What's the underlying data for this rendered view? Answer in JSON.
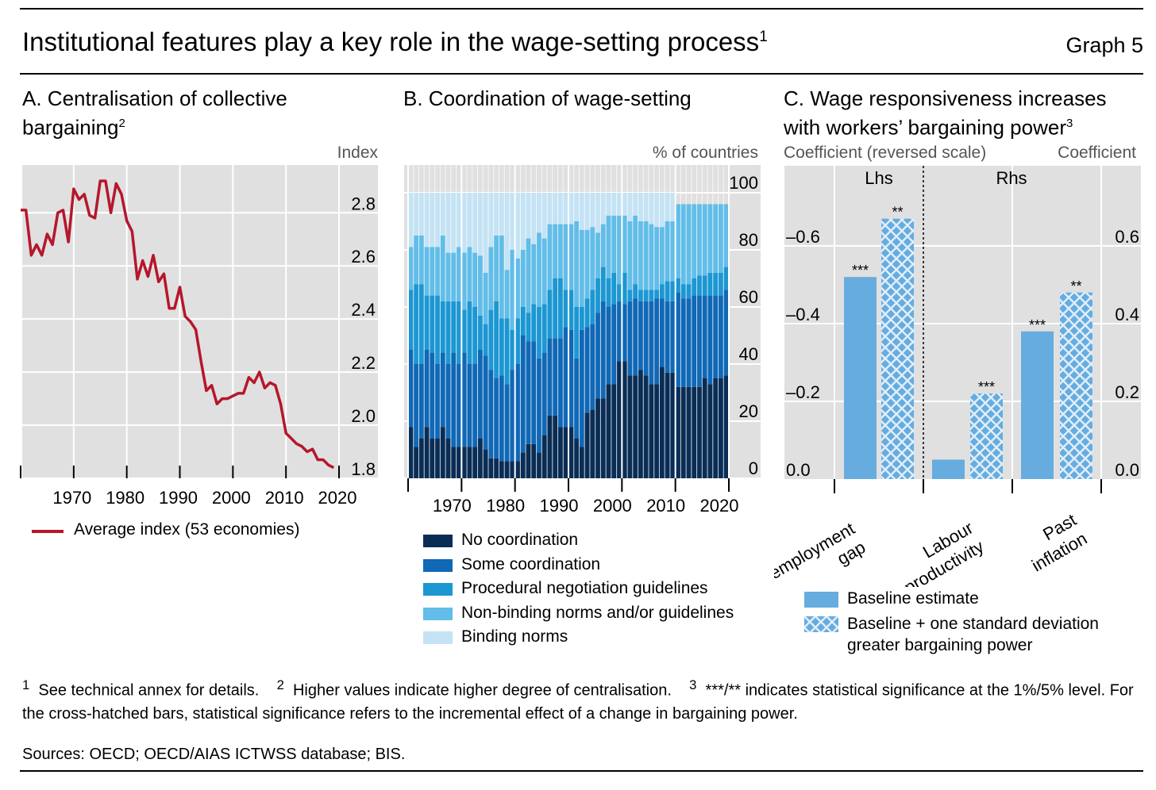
{
  "header": {
    "title": "Institutional features play a key role in the wage-setting process",
    "title_sup": "1",
    "graph_no": "Graph 5"
  },
  "footnotes": {
    "n1_mark": "1",
    "n1": "See technical annex for details.",
    "n2_mark": "2",
    "n2": "Higher values indicate higher degree of centralisation.",
    "n3_mark": "3",
    "n3a": "***/** indicates statistical significance at the",
    "n3b": "1%/5% level. For the cross-hatched bars, statistical significance refers to the incremental effect of a change in bargaining power.",
    "sources": "Sources: OECD; OECD/AIAS ICTWSS database; BIS."
  },
  "colors": {
    "line": "#b5172b",
    "grid_bg": "#e0e0e0",
    "no": "#0a2d55",
    "some": "#1068b6",
    "proc": "#1c97d2",
    "nonb": "#62bde8",
    "bind": "#c4e3f4",
    "bar": "#66acdf"
  },
  "chart_data": [
    {
      "type": "line",
      "title": "A. Centralisation of collective bargaining",
      "title_sup": "2",
      "ylabel": "Index",
      "ylim": [
        1.8,
        2.98
      ],
      "yticks": [
        "1.8",
        "2.0",
        "2.2",
        "2.4",
        "2.6",
        "2.8"
      ],
      "xticks": [
        "1970",
        "1980",
        "1990",
        "2000",
        "2010",
        "2020"
      ],
      "xlim": [
        1960,
        2020
      ],
      "legend": "Average index (53 economies)",
      "x_start": 1960,
      "values": [
        2.81,
        2.81,
        2.64,
        2.68,
        2.64,
        2.72,
        2.68,
        2.8,
        2.81,
        2.69,
        2.89,
        2.85,
        2.87,
        2.79,
        2.78,
        2.92,
        2.92,
        2.8,
        2.91,
        2.87,
        2.77,
        2.73,
        2.55,
        2.62,
        2.56,
        2.64,
        2.54,
        2.57,
        2.44,
        2.44,
        2.52,
        2.41,
        2.39,
        2.36,
        2.24,
        2.13,
        2.15,
        2.08,
        2.1,
        2.1,
        2.11,
        2.12,
        2.12,
        2.18,
        2.16,
        2.2,
        2.14,
        2.16,
        2.15,
        2.08,
        1.97,
        1.95,
        1.93,
        1.92,
        1.9,
        1.91,
        1.87,
        1.87,
        1.85,
        1.84
      ]
    },
    {
      "type": "bar",
      "stacked": true,
      "title": "B. Coordination of wage-setting",
      "ylabel": "% of countries",
      "ylim": [
        0,
        100
      ],
      "yticks": [
        "0",
        "20",
        "40",
        "60",
        "80",
        "100"
      ],
      "xticks": [
        "1970",
        "1980",
        "1990",
        "2000",
        "2010",
        "2020"
      ],
      "x_start": 1960,
      "series_names": [
        "No coordination",
        "Some coordination",
        "Procedural negotiation guidelines",
        "Non-binding norms and/or guidelines",
        "Binding norms"
      ],
      "cumulative_upper": [
        [
          18,
          11,
          14,
          18,
          14,
          14,
          18,
          14,
          11,
          11,
          11,
          11,
          11,
          14,
          10,
          7,
          7,
          6,
          6,
          6,
          6,
          9,
          12,
          12,
          9,
          15,
          22,
          22,
          18,
          18,
          18,
          14,
          11,
          23,
          24,
          28,
          28,
          33,
          33,
          41,
          41,
          36,
          36,
          38,
          36,
          33,
          33,
          39,
          37,
          37,
          32,
          32,
          32,
          32,
          32,
          35,
          33,
          35,
          35,
          36
        ],
        [
          45,
          40,
          40,
          45,
          44,
          40,
          44,
          40,
          44,
          40,
          44,
          40,
          40,
          45,
          43,
          38,
          35,
          36,
          33,
          38,
          40,
          50,
          48,
          48,
          42,
          44,
          49,
          49,
          49,
          53,
          52,
          42,
          52,
          53,
          54,
          58,
          62,
          60,
          61,
          62,
          61,
          62,
          63,
          62,
          62,
          62,
          63,
          63,
          62,
          62,
          65,
          63,
          63,
          64,
          64,
          64,
          64,
          64,
          64,
          66
        ],
        [
          66,
          68,
          68,
          64,
          64,
          64,
          62,
          62,
          62,
          62,
          59,
          62,
          60,
          57,
          54,
          59,
          62,
          56,
          56,
          52,
          56,
          60,
          58,
          61,
          60,
          61,
          66,
          70,
          70,
          66,
          66,
          60,
          60,
          63,
          66,
          70,
          74,
          70,
          72,
          68,
          72,
          66,
          68,
          66,
          66,
          66,
          66,
          68,
          69,
          69,
          70,
          68,
          68,
          70,
          71,
          71,
          72,
          72,
          72,
          74
        ],
        [
          81,
          85,
          85,
          81,
          81,
          81,
          85,
          79,
          79,
          81,
          79,
          81,
          79,
          78,
          72,
          81,
          85,
          85,
          73,
          80,
          77,
          80,
          84,
          82,
          86,
          84,
          89,
          89,
          89,
          89,
          89,
          90,
          87,
          87,
          88,
          86,
          89,
          92,
          92,
          92,
          92,
          90,
          92,
          90,
          90,
          89,
          88,
          88,
          90,
          90,
          96,
          96,
          96,
          96,
          96,
          96,
          96,
          96,
          96,
          96
        ],
        [
          100,
          100,
          100,
          100,
          100,
          100,
          100,
          100,
          100,
          100,
          100,
          100,
          100,
          100,
          100,
          100,
          100,
          100,
          100,
          100,
          100,
          100,
          100,
          100,
          100,
          100,
          100,
          100,
          100,
          100,
          100,
          100,
          100,
          100,
          100,
          100,
          100,
          100,
          100,
          100,
          100,
          100,
          100,
          100,
          100,
          100,
          100,
          100,
          100,
          100,
          96,
          96,
          96,
          96,
          96,
          96,
          96,
          96,
          96,
          96
        ]
      ]
    },
    {
      "type": "bar",
      "title": "C. Wage responsiveness increases with workers’ bargaining power",
      "title_sup": "3",
      "ylabel_left": "Coefficient (reversed scale)",
      "ylabel_right": "Coefficient",
      "ylim": [
        0,
        0.8
      ],
      "yticks_left": [
        "0.0",
        "–0.2",
        "–0.4",
        "–0.6"
      ],
      "yticks_right": [
        "0.0",
        "0.2",
        "0.4",
        "0.6"
      ],
      "section_left": "Lhs",
      "section_right": "Rhs",
      "categories": [
        [
          "Unemployment",
          "gap"
        ],
        [
          "Labour",
          "productivity"
        ],
        [
          "Past",
          "inflation"
        ]
      ],
      "series": [
        {
          "name": "Baseline estimate",
          "values": [
            -0.52,
            0.05,
            0.38
          ],
          "stars": [
            "***",
            "",
            "***"
          ]
        },
        {
          "name": "Baseline + one standard deviation",
          "name2": "greater bargaining power",
          "values": [
            -0.67,
            0.22,
            0.48
          ],
          "stars": [
            "**",
            "***",
            "**"
          ]
        }
      ]
    }
  ]
}
